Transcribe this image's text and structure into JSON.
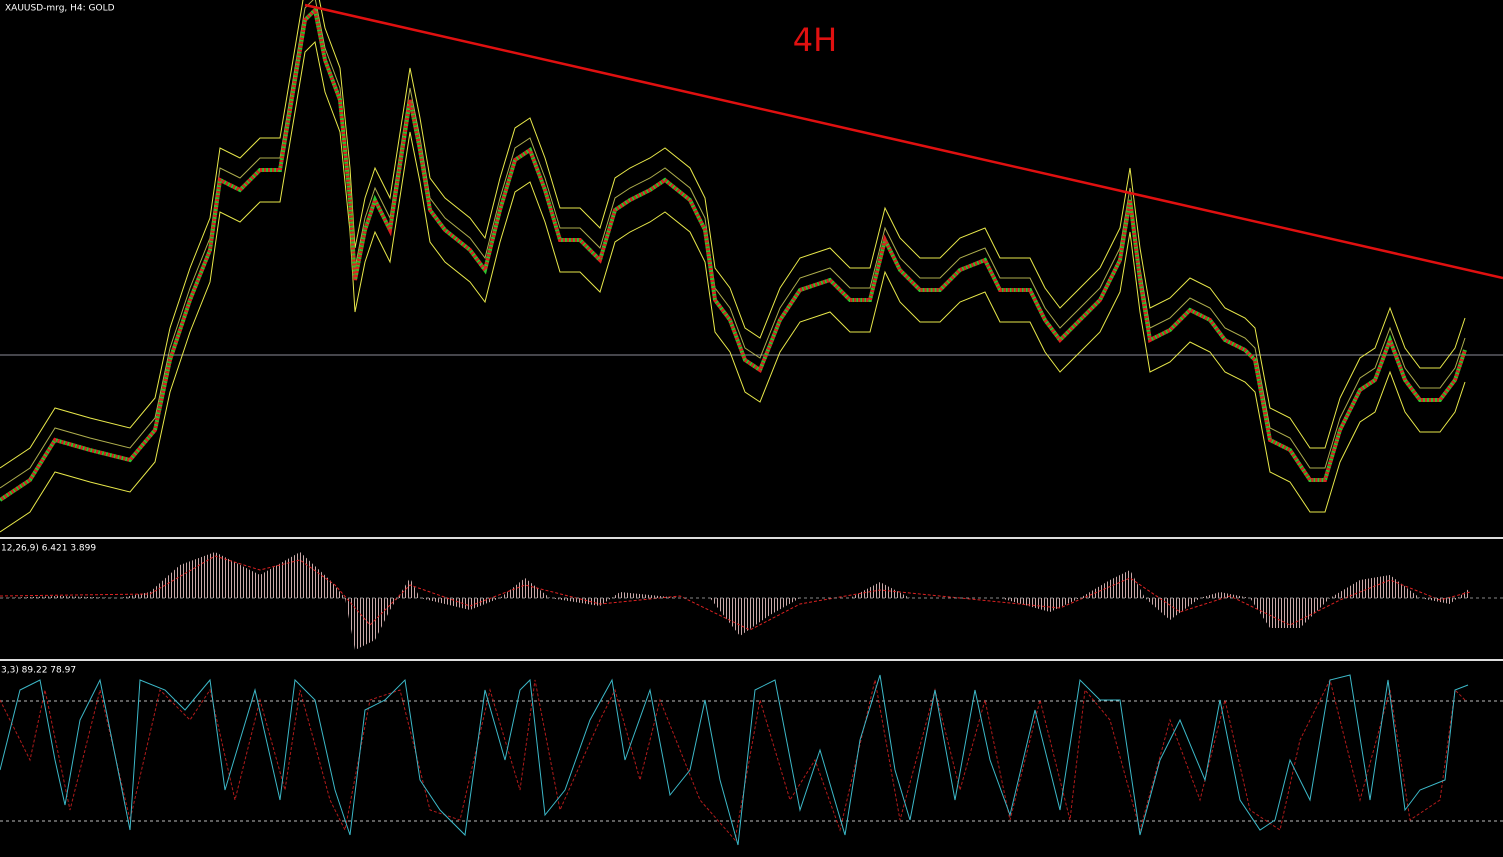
{
  "header": {
    "symbol": "XAUUSD-mrg, H4:  GOLD"
  },
  "annotation": {
    "timeframe": "4H"
  },
  "macd_panel": {
    "label": "12,26,9) 6.421 3.899"
  },
  "stochastic_panel": {
    "label": "3,3) 89.22 78.97"
  }
}
